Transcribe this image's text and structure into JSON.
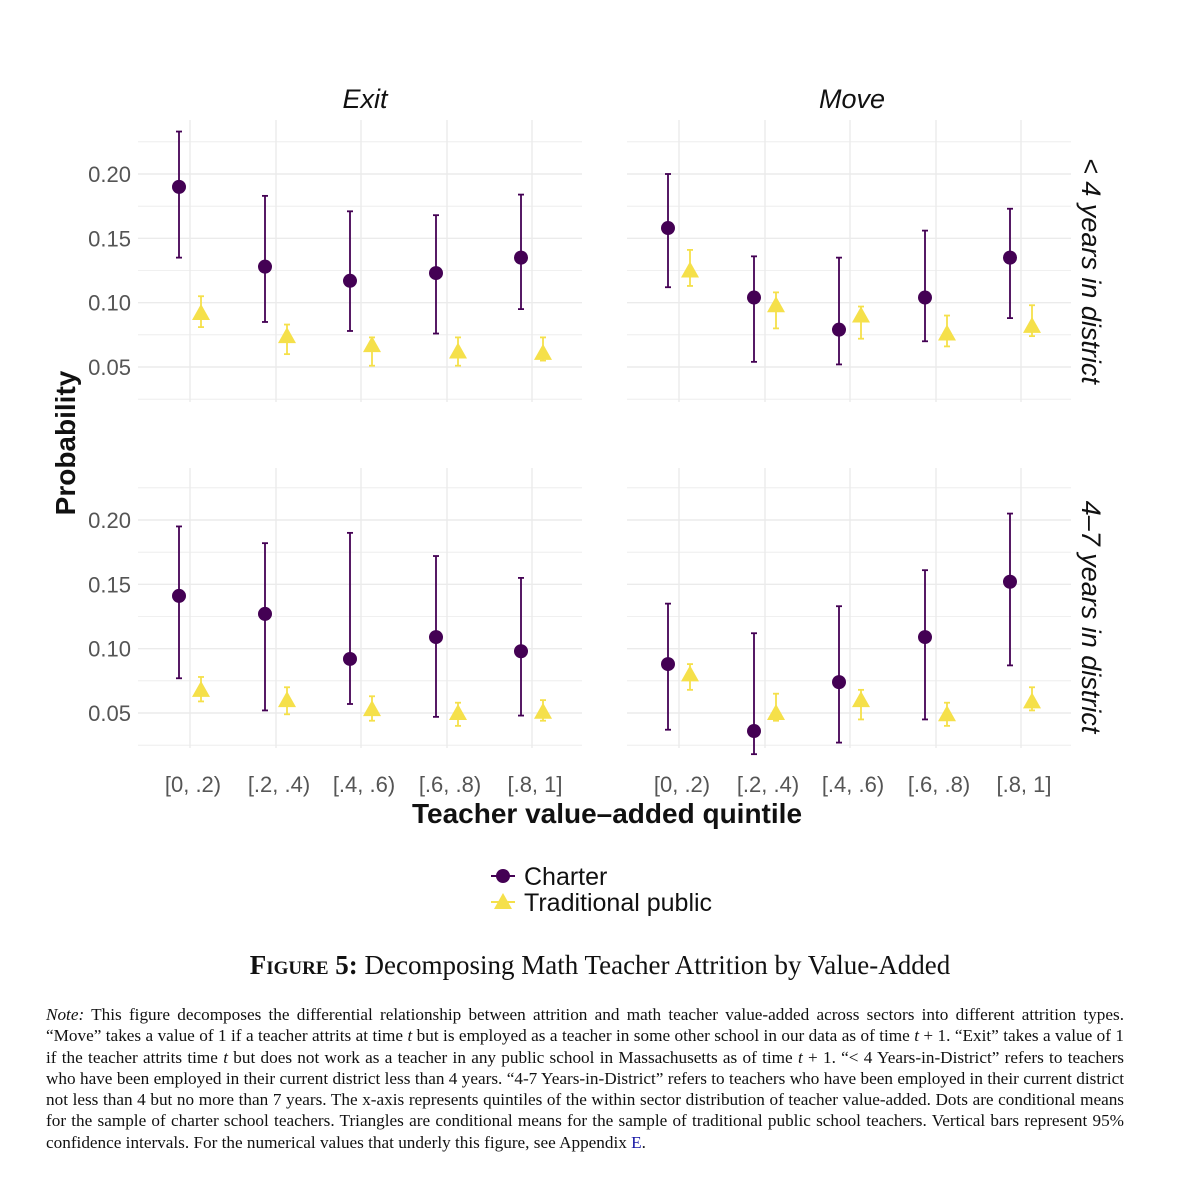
{
  "figure": {
    "ylabel": "Probability",
    "xlabel": "Teacher value–added quintile",
    "legend": {
      "charter": "Charter",
      "traditional": "Traditional public"
    },
    "colors": {
      "charter": "#440154",
      "traditional": "#f5e04a",
      "grid": "#ebebeb"
    },
    "col_titles": [
      "Exit",
      "Move"
    ],
    "row_titles": [
      "< 4 years in district",
      "4–7 years in district"
    ],
    "y_ticks": [
      "0.05",
      "0.10",
      "0.15",
      "0.20"
    ],
    "x_ticks": [
      "[0, .2)",
      "[.2, .4)",
      "[.4, .6)",
      "[.6, .8)",
      "[.8, 1]"
    ]
  },
  "chart_data": {
    "type": "scatter",
    "ylim": [
      0.0,
      0.24
    ],
    "categories": [
      "[0, .2)",
      "[.2, .4)",
      "[.4, .6)",
      "[.6, .8)",
      "[.8, 1]"
    ],
    "panels": [
      {
        "col": "Exit",
        "row": "< 4 years in district",
        "series": [
          {
            "name": "Charter",
            "values": [
              0.19,
              0.128,
              0.117,
              0.123,
              0.135
            ],
            "ci": [
              [
                0.135,
                0.233
              ],
              [
                0.085,
                0.183
              ],
              [
                0.078,
                0.171
              ],
              [
                0.076,
                0.168
              ],
              [
                0.095,
                0.184
              ]
            ]
          },
          {
            "name": "Traditional public",
            "values": [
              0.092,
              0.074,
              0.067,
              0.062,
              0.061
            ],
            "ci": [
              [
                0.081,
                0.105
              ],
              [
                0.06,
                0.083
              ],
              [
                0.051,
                0.073
              ],
              [
                0.051,
                0.073
              ],
              [
                0.055,
                0.073
              ]
            ]
          }
        ]
      },
      {
        "col": "Move",
        "row": "< 4 years in district",
        "series": [
          {
            "name": "Charter",
            "values": [
              0.158,
              0.104,
              0.079,
              0.104,
              0.135
            ],
            "ci": [
              [
                0.112,
                0.2
              ],
              [
                0.054,
                0.136
              ],
              [
                0.052,
                0.135
              ],
              [
                0.07,
                0.156
              ],
              [
                0.088,
                0.173
              ]
            ]
          },
          {
            "name": "Traditional public",
            "values": [
              0.125,
              0.098,
              0.09,
              0.076,
              0.082
            ],
            "ci": [
              [
                0.113,
                0.141
              ],
              [
                0.08,
                0.108
              ],
              [
                0.072,
                0.097
              ],
              [
                0.066,
                0.09
              ],
              [
                0.074,
                0.098
              ]
            ]
          }
        ]
      },
      {
        "col": "Exit",
        "row": "4–7 years in district",
        "series": [
          {
            "name": "Charter",
            "values": [
              0.141,
              0.127,
              0.092,
              0.109,
              0.098
            ],
            "ci": [
              [
                0.077,
                0.195
              ],
              [
                0.052,
                0.182
              ],
              [
                0.057,
                0.19
              ],
              [
                0.047,
                0.172
              ],
              [
                0.048,
                0.155
              ]
            ]
          },
          {
            "name": "Traditional public",
            "values": [
              0.068,
              0.06,
              0.053,
              0.05,
              0.051
            ],
            "ci": [
              [
                0.059,
                0.078
              ],
              [
                0.049,
                0.07
              ],
              [
                0.044,
                0.063
              ],
              [
                0.04,
                0.058
              ],
              [
                0.044,
                0.06
              ]
            ]
          }
        ]
      },
      {
        "col": "Move",
        "row": "4–7 years in district",
        "series": [
          {
            "name": "Charter",
            "values": [
              0.088,
              0.036,
              0.074,
              0.109,
              0.152
            ],
            "ci": [
              [
                0.037,
                0.135
              ],
              [
                0.018,
                0.112
              ],
              [
                0.027,
                0.133
              ],
              [
                0.045,
                0.161
              ],
              [
                0.087,
                0.205
              ]
            ]
          },
          {
            "name": "Traditional public",
            "values": [
              0.08,
              0.05,
              0.06,
              0.049,
              0.059
            ],
            "ci": [
              [
                0.068,
                0.088
              ],
              [
                0.044,
                0.065
              ],
              [
                0.045,
                0.068
              ],
              [
                0.04,
                0.058
              ],
              [
                0.052,
                0.07
              ]
            ]
          }
        ]
      }
    ]
  },
  "caption": {
    "label": "Figure 5:",
    "text": "Decomposing Math Teacher Attrition by Value-Added"
  },
  "note": {
    "label": "Note:",
    "p1": "This figure decomposes the differential relationship between attrition and math teacher value-added across sectors into different attrition types. “Move” takes a value of 1 if a teacher attrits at time ",
    "t1": "t",
    "p2": " but is employed as a teacher in some other school in our data as of time ",
    "t2": "t",
    "p3": " + 1. “Exit” takes a value of 1 if the teacher attrits time ",
    "t3": "t",
    "p4": " but does not work as a teacher in any public school in Massachusetts as of time ",
    "t4": "t",
    "p5": " + 1. “< 4 Years-in-District” refers to teachers who have been employed in their current district less than 4 years. “4-7 Years-in-District” refers to teachers who have been employed in their current district not less than 4 but no more than 7 years. The x-axis represents quintiles of the within sector distribution of teacher value-added. Dots are conditional means for the sample of charter school teachers. Triangles are conditional means for the sample of traditional public school teachers. Vertical bars represent 95% confidence intervals. For the numerical values that underly this figure, see Appendix ",
    "link": "E",
    "end": "."
  }
}
